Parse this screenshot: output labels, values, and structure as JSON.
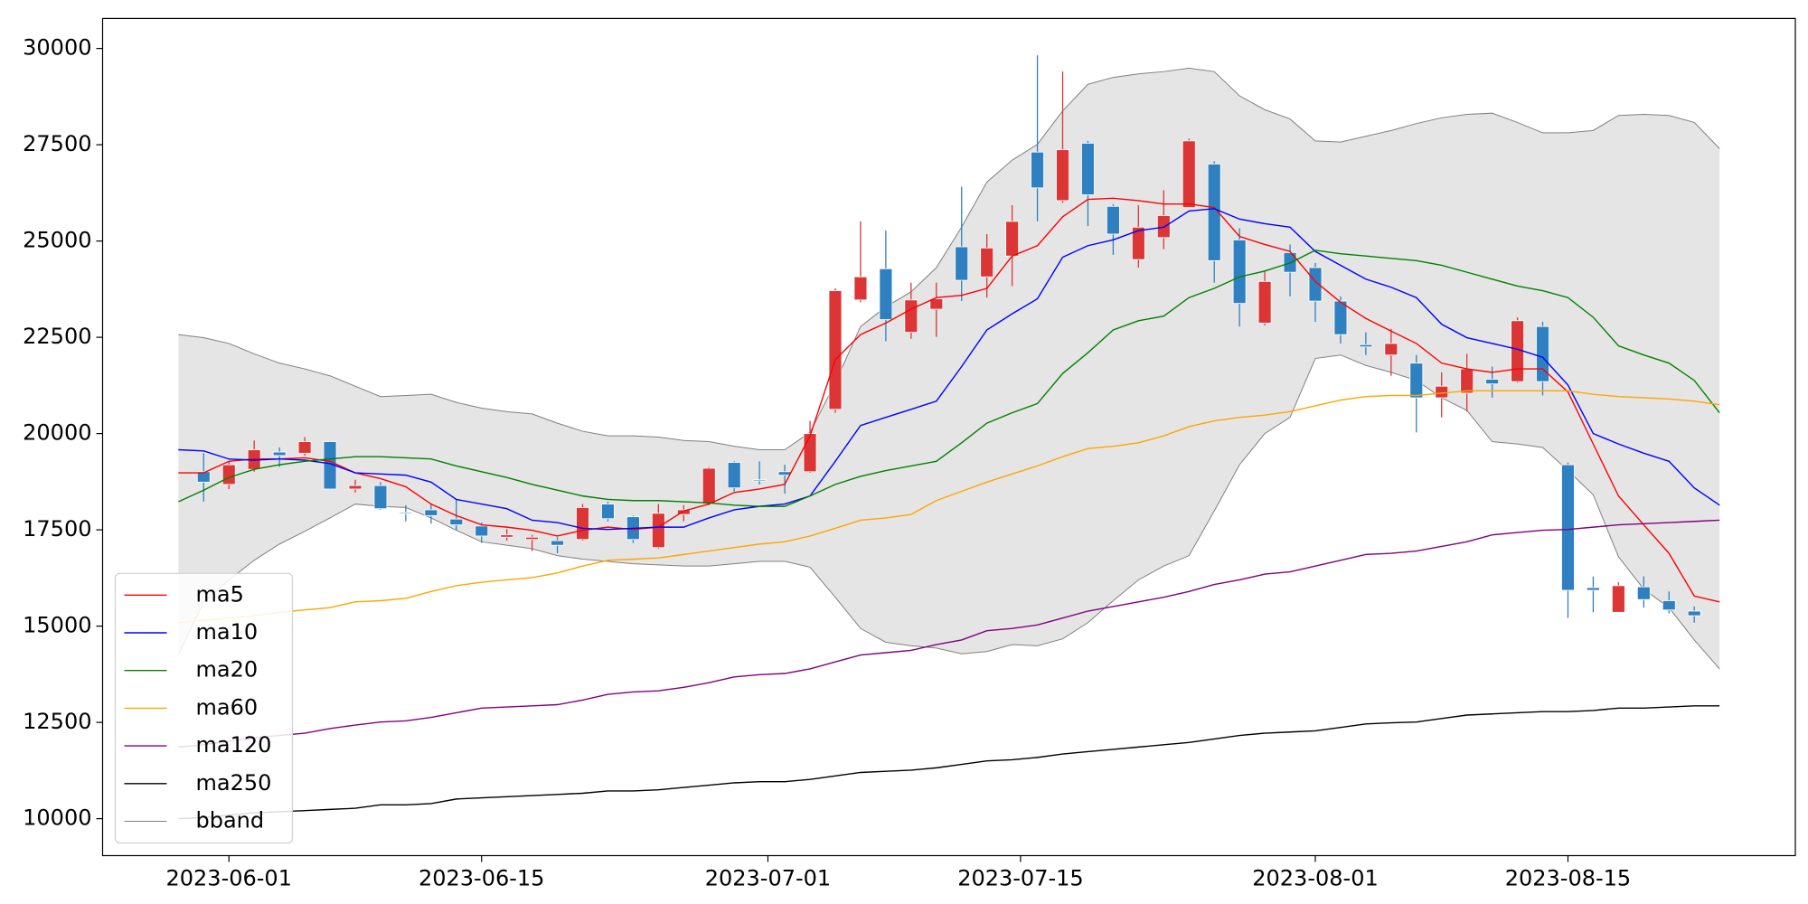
{
  "chart_data": {
    "type": "candlestick",
    "x": [
      "2023-05-30",
      "2023-05-31",
      "2023-06-01",
      "2023-06-02",
      "2023-06-05",
      "2023-06-06",
      "2023-06-07",
      "2023-06-08",
      "2023-06-09",
      "2023-06-12",
      "2023-06-13",
      "2023-06-14",
      "2023-06-15",
      "2023-06-16",
      "2023-06-19",
      "2023-06-20",
      "2023-06-21",
      "2023-06-22",
      "2023-06-23",
      "2023-06-26",
      "2023-06-27",
      "2023-06-28",
      "2023-06-29",
      "2023-06-30",
      "2023-07-03",
      "2023-07-04",
      "2023-07-05",
      "2023-07-06",
      "2023-07-07",
      "2023-07-10",
      "2023-07-11",
      "2023-07-12",
      "2023-07-13",
      "2023-07-14",
      "2023-07-17",
      "2023-07-18",
      "2023-07-19",
      "2023-07-20",
      "2023-07-21",
      "2023-07-24",
      "2023-07-25",
      "2023-07-26",
      "2023-07-27",
      "2023-07-28",
      "2023-07-31",
      "2023-08-01",
      "2023-08-02",
      "2023-08-03",
      "2023-08-04",
      "2023-08-07",
      "2023-08-08",
      "2023-08-09",
      "2023-08-10",
      "2023-08-11",
      "2023-08-14",
      "2023-08-15",
      "2023-08-16",
      "2023-08-17",
      "2023-08-18",
      "2023-08-21",
      "2023-08-22",
      "2023-08-23"
    ],
    "open": [
      null,
      19010,
      18680,
      19070,
      19520,
      19490,
      19790,
      18560,
      18650,
      17950,
      18020,
      17780,
      17600,
      17310,
      17250,
      17220,
      17250,
      18170,
      17840,
      17040,
      17900,
      18170,
      19250,
      18800,
      19010,
      19010,
      20630,
      23470,
      24280,
      22630,
      23230,
      24850,
      24070,
      24610,
      27310,
      26050,
      27540,
      25900,
      24520,
      25090,
      25870,
      27000,
      25030,
      22870,
      24700,
      24310,
      23440,
      22310,
      22040,
      21830,
      20930,
      21050,
      21410,
      21350,
      22780,
      19190,
      16000,
      15360,
      16020,
      15660,
      15390,
      null
    ],
    "high": [
      null,
      19490,
      19280,
      19820,
      19640,
      19910,
      19800,
      18800,
      18740,
      18140,
      18170,
      18290,
      17690,
      17520,
      17370,
      17310,
      18170,
      18230,
      17870,
      18170,
      18140,
      19130,
      19280,
      19280,
      19190,
      20330,
      23770,
      25510,
      25270,
      23920,
      23920,
      26410,
      25180,
      25930,
      29820,
      29400,
      27600,
      25960,
      25930,
      26320,
      27660,
      27070,
      25330,
      24220,
      24910,
      24430,
      23560,
      22630,
      22720,
      22040,
      21590,
      22070,
      21740,
      23020,
      22900,
      19250,
      16290,
      16140,
      16290,
      15900,
      15510,
      null
    ],
    "low": [
      null,
      18230,
      18560,
      19010,
      19130,
      19430,
      18550,
      18470,
      18020,
      17720,
      17660,
      17490,
      17160,
      17220,
      16950,
      16890,
      17220,
      17720,
      17160,
      17010,
      17720,
      18140,
      18500,
      18680,
      18440,
      18980,
      20540,
      23410,
      22400,
      22460,
      22510,
      23440,
      23530,
      23830,
      25510,
      25990,
      25390,
      24640,
      24310,
      24790,
      25870,
      23920,
      22780,
      22810,
      23560,
      22900,
      22340,
      22040,
      21500,
      20030,
      20420,
      20570,
      20930,
      21320,
      20990,
      15210,
      15360,
      15360,
      15480,
      15330,
      15090,
      null
    ],
    "close": [
      null,
      18740,
      19190,
      19580,
      19430,
      19790,
      18560,
      18650,
      18050,
      17930,
      17870,
      17630,
      17340,
      17370,
      17310,
      17100,
      18080,
      17790,
      17250,
      17930,
      18020,
      19100,
      18590,
      18770,
      18920,
      20000,
      23710,
      24070,
      22960,
      23470,
      23500,
      23980,
      24820,
      25510,
      26380,
      27370,
      26200,
      25180,
      25360,
      25660,
      27600,
      24490,
      23380,
      23950,
      24190,
      23440,
      22570,
      22250,
      22340,
      20930,
      21230,
      21680,
      21290,
      22930,
      21350,
      15930,
      15930,
      16050,
      15690,
      15420,
      15270,
      null
    ],
    "up_color": "#dc3535",
    "down_color": "#2f80c0",
    "series": [
      {
        "name": "ma5",
        "color": "red",
        "values": [
          18980,
          18980,
          19280,
          19340,
          19340,
          19370,
          19280,
          18980,
          18830,
          18620,
          18170,
          17870,
          17630,
          17570,
          17490,
          17340,
          17490,
          17570,
          17510,
          17570,
          17990,
          18170,
          18470,
          18560,
          18680,
          19940,
          21920,
          22570,
          22870,
          23230,
          23530,
          23590,
          23770,
          24610,
          24880,
          25630,
          26080,
          26110,
          26050,
          25960,
          25960,
          25870,
          25120,
          24910,
          24730,
          23950,
          23410,
          22990,
          22660,
          22340,
          21830,
          21680,
          21590,
          21680,
          21680,
          21080,
          19730,
          18380,
          17630,
          16890,
          15780,
          15630
        ]
      },
      {
        "name": "ma10",
        "color": "blue",
        "values": [
          19580,
          19550,
          19340,
          19310,
          19340,
          19310,
          19220,
          18980,
          18950,
          18920,
          18740,
          18290,
          18170,
          18050,
          17750,
          17690,
          17540,
          17510,
          17540,
          17570,
          17570,
          17810,
          18020,
          18110,
          18170,
          18380,
          19280,
          20210,
          20420,
          20630,
          20840,
          21740,
          22690,
          23110,
          23500,
          24580,
          24880,
          25030,
          25270,
          25360,
          25780,
          25840,
          25570,
          25450,
          25360,
          24730,
          24370,
          24010,
          23800,
          23530,
          22840,
          22490,
          22340,
          22190,
          21980,
          21260,
          20000,
          19730,
          19490,
          19280,
          18590,
          18140
        ]
      },
      {
        "name": "ma20",
        "color": "green",
        "values": [
          18230,
          18530,
          18860,
          19070,
          19190,
          19280,
          19340,
          19400,
          19400,
          19370,
          19340,
          19160,
          19010,
          18860,
          18680,
          18530,
          18380,
          18290,
          18260,
          18260,
          18230,
          18200,
          18140,
          18110,
          18110,
          18380,
          18680,
          18890,
          19040,
          19160,
          19280,
          19760,
          20270,
          20540,
          20780,
          21560,
          22100,
          22690,
          22930,
          23050,
          23530,
          23770,
          24070,
          24220,
          24430,
          24760,
          24670,
          24610,
          24550,
          24490,
          24370,
          24190,
          24010,
          23830,
          23710,
          23530,
          23020,
          22280,
          22040,
          21830,
          21380,
          20540
        ]
      },
      {
        "name": "ma60",
        "color": "orange",
        "values": [
          15090,
          15150,
          15210,
          15270,
          15360,
          15420,
          15480,
          15630,
          15660,
          15720,
          15900,
          16050,
          16140,
          16200,
          16260,
          16380,
          16560,
          16710,
          16740,
          16770,
          16860,
          16950,
          17040,
          17130,
          17190,
          17340,
          17540,
          17750,
          17810,
          17900,
          18260,
          18500,
          18740,
          18950,
          19160,
          19400,
          19610,
          19670,
          19760,
          19940,
          20180,
          20330,
          20420,
          20480,
          20570,
          20720,
          20870,
          20960,
          20990,
          20990,
          21050,
          21110,
          21110,
          21110,
          21110,
          21110,
          21020,
          20960,
          20930,
          20900,
          20840,
          20750
        ]
      },
      {
        "name": "ma120",
        "color": "purple",
        "values": [
          11860,
          11920,
          12010,
          12100,
          12160,
          12220,
          12340,
          12430,
          12510,
          12540,
          12630,
          12750,
          12870,
          12900,
          12930,
          12960,
          13080,
          13230,
          13290,
          13320,
          13410,
          13530,
          13680,
          13740,
          13770,
          13890,
          14070,
          14250,
          14310,
          14370,
          14520,
          14640,
          14880,
          14940,
          15030,
          15210,
          15390,
          15510,
          15630,
          15750,
          15900,
          16080,
          16200,
          16350,
          16410,
          16560,
          16710,
          16860,
          16890,
          16950,
          17070,
          17190,
          17370,
          17430,
          17490,
          17510,
          17570,
          17630,
          17660,
          17690,
          17720,
          17750
        ]
      },
      {
        "name": "ma250",
        "color": "black",
        "values": [
          10000,
          10030,
          10090,
          10150,
          10180,
          10210,
          10240,
          10270,
          10360,
          10360,
          10390,
          10510,
          10540,
          10570,
          10600,
          10630,
          10660,
          10720,
          10720,
          10750,
          10810,
          10870,
          10930,
          10960,
          10960,
          11020,
          11110,
          11200,
          11230,
          11260,
          11320,
          11410,
          11500,
          11530,
          11590,
          11680,
          11740,
          11800,
          11860,
          11920,
          11980,
          12070,
          12160,
          12220,
          12250,
          12280,
          12370,
          12460,
          12490,
          12510,
          12600,
          12690,
          12720,
          12750,
          12780,
          12780,
          12810,
          12870,
          12870,
          12900,
          12930,
          12930
        ]
      }
    ],
    "band": {
      "name": "bband",
      "color": "gray",
      "fill": "#e5e5e5",
      "upper": [
        22570,
        22490,
        22340,
        22070,
        21830,
        21680,
        21500,
        21230,
        20960,
        20990,
        21020,
        20810,
        20660,
        20570,
        20510,
        20270,
        20060,
        19940,
        19940,
        19910,
        19820,
        19790,
        19670,
        19580,
        19580,
        20030,
        21320,
        22780,
        23290,
        23680,
        24310,
        25360,
        26530,
        27100,
        27510,
        28380,
        29070,
        29250,
        29340,
        29400,
        29490,
        29400,
        28770,
        28410,
        28170,
        27600,
        27570,
        27720,
        27870,
        28050,
        28200,
        28290,
        28320,
        28080,
        27810,
        27810,
        27870,
        28260,
        28290,
        28260,
        28080,
        27400
      ],
      "lower": [
        14250,
        15630,
        16200,
        16710,
        17130,
        17460,
        17810,
        18170,
        18110,
        18080,
        17810,
        17490,
        17190,
        17100,
        17010,
        16830,
        16740,
        16680,
        16620,
        16590,
        16560,
        16560,
        16620,
        16680,
        16680,
        16530,
        15750,
        14940,
        14580,
        14490,
        14430,
        14280,
        14340,
        14520,
        14490,
        14670,
        15090,
        15660,
        16200,
        16560,
        16830,
        17990,
        19190,
        20000,
        20420,
        21950,
        22040,
        21770,
        21590,
        21380,
        20930,
        20600,
        19790,
        19730,
        19640,
        19040,
        18410,
        16800,
        15960,
        15480,
        14640,
        13890
      ]
    },
    "ylim": [
      9040,
      30780
    ],
    "yticks": [
      10000,
      12500,
      15000,
      17500,
      20000,
      22500,
      25000,
      27500,
      30000
    ],
    "xticks": [
      "2023-06-01",
      "2023-06-15",
      "2023-07-01",
      "2023-07-15",
      "2023-08-01",
      "2023-08-15"
    ],
    "legend": "lower left"
  }
}
